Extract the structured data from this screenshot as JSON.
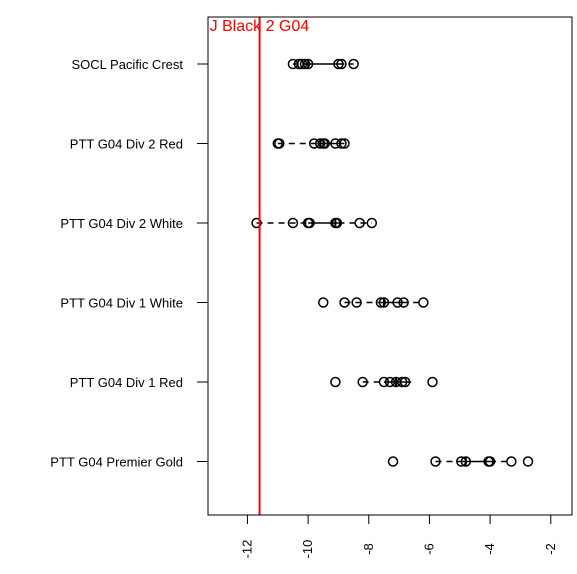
{
  "chart_data": {
    "type": "box",
    "orientation": "horizontal",
    "xlim": [
      -13.3,
      -1.3
    ],
    "x_ticks": [
      -12,
      -10,
      -8,
      -6,
      -4,
      -2
    ],
    "x_tick_labels": [
      "-12",
      "-10",
      "-8",
      "-6",
      "-4",
      "-2"
    ],
    "grid": false,
    "reference_line": {
      "x": -11.6,
      "label": "J Black 2 G04",
      "color": "#ff0000"
    },
    "categories": [
      "SOCL Pacific Crest",
      "PTT G04 Div 2 Red",
      "PTT G04 Div 2 White",
      "PTT G04 Div 1 White",
      "PTT G04 Div 1 Red",
      "PTT G04 Premier Gold"
    ],
    "series": [
      {
        "category": "SOCL Pacific Crest",
        "whisker_low": -10.5,
        "q1": -10.2,
        "median": -10.0,
        "q3": -9.0,
        "whisker_high": -8.5,
        "points": [
          -10.5,
          -10.3,
          -10.2,
          -10.1,
          -10.0,
          -9.0,
          -8.9,
          -8.5
        ]
      },
      {
        "category": "PTT G04 Div 2 Red",
        "whisker_low": -11.0,
        "q1": -9.7,
        "median": -9.5,
        "q3": -9.0,
        "whisker_high": -8.8,
        "points": [
          -11.0,
          -10.95,
          -9.8,
          -9.6,
          -9.5,
          -9.45,
          -9.1,
          -8.9,
          -8.8
        ]
      },
      {
        "category": "PTT G04 Div 2 White",
        "whisker_low": -11.7,
        "q1": -10.0,
        "median": -9.1,
        "q3": -9.0,
        "whisker_high": -7.9,
        "points": [
          -11.7,
          -10.5,
          -10.0,
          -9.95,
          -9.1,
          -9.05,
          -8.3,
          -7.9
        ]
      },
      {
        "category": "PTT G04 Div 1 White",
        "whisker_low": -8.8,
        "q1": -7.6,
        "median": -7.5,
        "q3": -6.9,
        "whisker_high": -6.2,
        "points": [
          -9.5,
          -8.8,
          -8.4,
          -7.6,
          -7.5,
          -7.05,
          -6.85,
          -6.2
        ]
      },
      {
        "category": "PTT G04 Div 1 Red",
        "whisker_low": -8.2,
        "q1": -7.5,
        "median": -7.1,
        "q3": -6.8,
        "whisker_high": -6.5,
        "points": [
          -9.1,
          -8.2,
          -7.5,
          -7.3,
          -7.1,
          -6.9,
          -6.8,
          -5.9
        ]
      },
      {
        "category": "PTT G04 Premier Gold",
        "whisker_low": -5.8,
        "q1": -4.9,
        "median": -4.8,
        "q3": -4.0,
        "whisker_high": -3.3,
        "points": [
          -7.2,
          -5.8,
          -4.95,
          -4.8,
          -4.05,
          -4.0,
          -3.3,
          -2.75
        ]
      }
    ]
  }
}
